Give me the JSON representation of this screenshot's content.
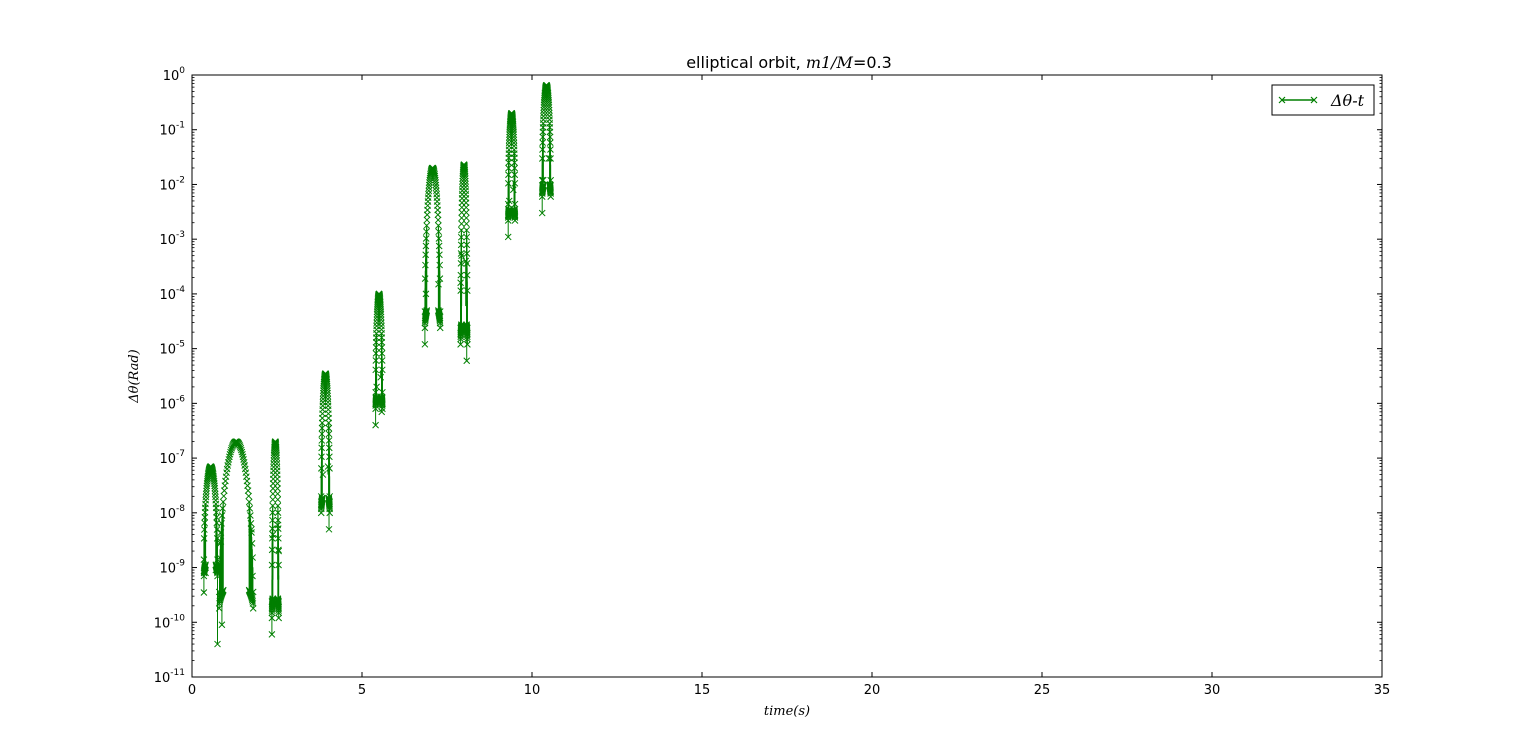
{
  "chart_data": {
    "type": "line",
    "title": "elliptical orbit, m1/M=0.3",
    "title_text": "elliptical orbit, ",
    "title_math": "m1/M",
    "title_value": "=0.3",
    "xlabel": "time(s)",
    "ylabel": "Δθ(Rad)",
    "xlim": [
      0,
      35
    ],
    "ylim": [
      1e-11,
      1
    ],
    "yscale": "log",
    "grid": false,
    "legend_position": "top-right",
    "x_ticks": [
      "0",
      "5",
      "10",
      "15",
      "20",
      "25",
      "30",
      "35"
    ],
    "y_ticks": [
      "10^0",
      "10^-1",
      "10^-2",
      "10^-3",
      "10^-4",
      "10^-5",
      "10^-6",
      "10^-7",
      "10^-8",
      "10^-9",
      "10^-10",
      "10^-11"
    ],
    "series": [
      {
        "name": "Δθ-t",
        "color": "#007f00",
        "marker": "x",
        "segments": [
          {
            "x0": 0.35,
            "x1": 0.75,
            "ymin": 3.5e-10,
            "ymax": 7e-08,
            "dips": [
              [
                0.35,
                3.5e-10
              ],
              [
                0.4,
                8e-10
              ],
              [
                0.7,
                9e-10
              ],
              [
                0.75,
                4e-11
              ]
            ]
          },
          {
            "x0": 0.8,
            "x1": 1.8,
            "ymin": 9e-11,
            "ymax": 2e-07,
            "dips": [
              [
                0.88,
                9e-11
              ],
              [
                0.85,
                3e-09
              ],
              [
                1.78,
                7e-10
              ],
              [
                1.75,
                5e-09
              ]
            ]
          },
          {
            "x0": 2.35,
            "x1": 2.55,
            "ymin": 6e-11,
            "ymax": 2e-07,
            "dips": [
              [
                2.35,
                6e-11
              ],
              [
                2.38,
                4e-09
              ],
              [
                2.55,
                2e-09
              ],
              [
                2.52,
                6e-09
              ]
            ]
          },
          {
            "x0": 3.8,
            "x1": 4.05,
            "ymin": 5e-09,
            "ymax": 3.5e-06,
            "dips": [
              [
                3.8,
                1.4e-08
              ],
              [
                3.85,
                5e-08
              ],
              [
                4.03,
                5e-09
              ],
              [
                4.0,
                7e-08
              ]
            ]
          },
          {
            "x0": 5.4,
            "x1": 5.6,
            "ymin": 4e-07,
            "ymax": 0.0001,
            "dips": [
              [
                5.4,
                4e-07
              ],
              [
                5.43,
                2e-06
              ],
              [
                5.58,
                7e-07
              ],
              [
                5.55,
                3e-06
              ]
            ]
          },
          {
            "x0": 6.85,
            "x1": 7.3,
            "ymin": 1.2e-05,
            "ymax": 0.02,
            "dips": [
              [
                6.85,
                1.2e-05
              ],
              [
                6.88,
                0.0001
              ],
              [
                7.28,
                4e-05
              ],
              [
                7.25,
                0.00015
              ]
            ]
          },
          {
            "x0": 7.9,
            "x1": 8.1,
            "ymin": 6e-06,
            "ymax": 0.023,
            "dips": [
              [
                7.9,
                0.00016
              ],
              [
                7.93,
                0.0005
              ],
              [
                8.08,
                6e-06
              ],
              [
                8.05,
                0.0004
              ]
            ]
          },
          {
            "x0": 9.3,
            "x1": 9.5,
            "ymin": 0.0011,
            "ymax": 0.2,
            "dips": [
              [
                9.3,
                0.0011
              ],
              [
                9.33,
                0.005
              ],
              [
                9.48,
                0.003
              ],
              [
                9.45,
                0.008
              ]
            ]
          },
          {
            "x0": 10.3,
            "x1": 10.55,
            "ymin": 0.003,
            "ymax": 0.65,
            "dips": [
              [
                10.3,
                0.003
              ],
              [
                10.33,
                0.012
              ],
              [
                10.53,
                0.01
              ],
              [
                10.5,
                0.03
              ]
            ]
          }
        ]
      }
    ]
  }
}
